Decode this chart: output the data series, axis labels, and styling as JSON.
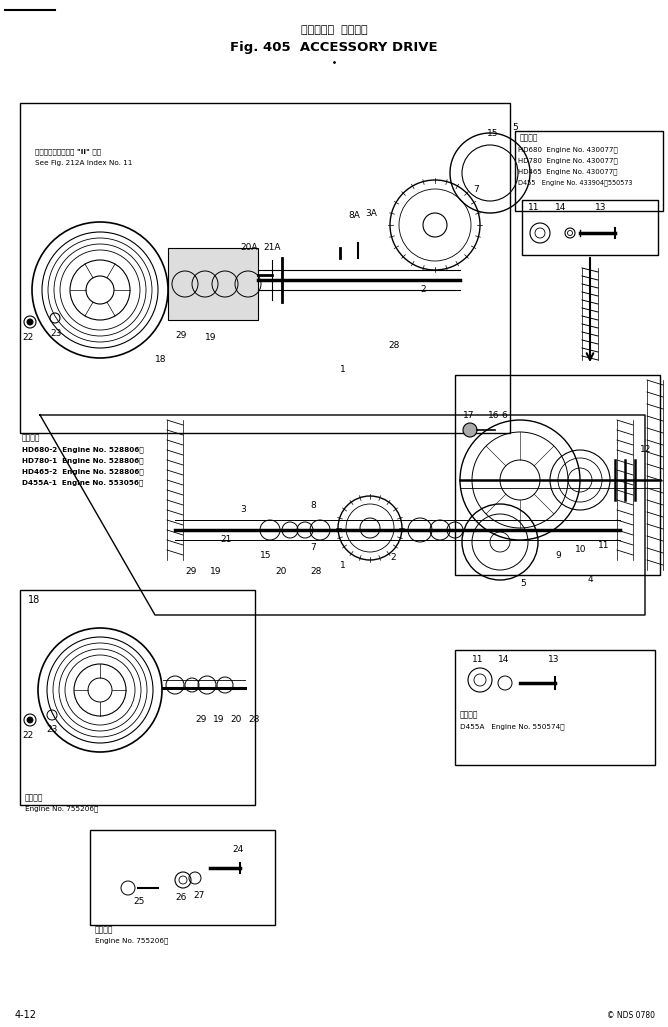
{
  "bg_color": "#ffffff",
  "line_color": "#000000",
  "title_jp": "アクセサリ  ドライブ",
  "title_en": "Fig. 405  ACCESSORY DRIVE",
  "page_num": "4-12",
  "copyright": "© NDS 0780"
}
